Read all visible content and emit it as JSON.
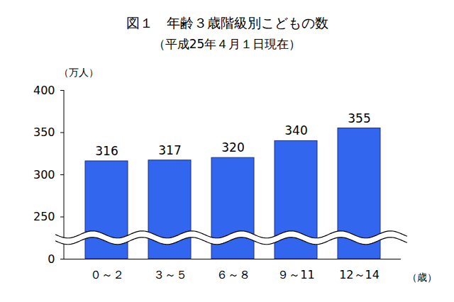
{
  "chart_data": {
    "type": "bar",
    "title": "図１　年齢３歳階級別こどもの数",
    "subtitle": "（平成25年４月１日現在）",
    "y_label": "（万人）",
    "x_label": "（歳）",
    "categories": [
      "０～２",
      "３～５",
      "６～８",
      "９～11",
      "12～14"
    ],
    "values": [
      316,
      317,
      320,
      340,
      355
    ],
    "color": "#3366ee",
    "ylim": [
      0,
      400
    ],
    "yticks": [
      0,
      250,
      300,
      350,
      400
    ],
    "grid": false,
    "data_labels": true
  }
}
